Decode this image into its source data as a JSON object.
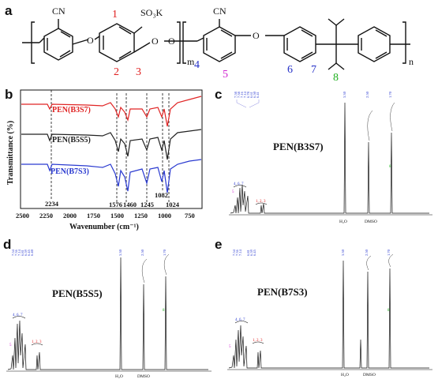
{
  "panels": {
    "a": {
      "label": "a",
      "cn1": "CN",
      "sulfonate": "SO₃K",
      "o_atoms": [
        "O",
        "O",
        "O",
        "O"
      ],
      "m": "m",
      "n": "n",
      "numbers": [
        {
          "text": "1",
          "color": "#e02020"
        },
        {
          "text": "2",
          "color": "#e02020"
        },
        {
          "text": "3",
          "color": "#e02020"
        },
        {
          "text": "4",
          "color": "#2530c8"
        },
        {
          "text": "5",
          "color": "#d020d0"
        },
        {
          "text": "6",
          "color": "#2530c8"
        },
        {
          "text": "7",
          "color": "#2530c8"
        },
        {
          "text": "8",
          "color": "#20b020"
        }
      ],
      "cn2": "CN"
    },
    "b": {
      "label": "b",
      "ylabel": "Transmittance (%)",
      "xlabel": "Wavenumber (cm⁻¹)",
      "xticks": [
        "2500",
        "2250",
        "2000",
        "1750",
        "1500",
        "1250",
        "1000",
        "750"
      ],
      "series": [
        {
          "name": "PEN(B3S7)",
          "color": "#e02424"
        },
        {
          "name": "PEN(B5S5)",
          "color": "#222222"
        },
        {
          "name": "PEN(B7S3)",
          "color": "#2a3ad0"
        }
      ],
      "peaks": [
        "2234",
        "1576",
        "1460",
        "1245",
        "1082",
        "1024"
      ]
    },
    "c": {
      "label": "c",
      "title": "PEN(B3S7)",
      "assign": [
        "4, 6, 7",
        "5",
        "1, 2, 3",
        "8"
      ],
      "solvents": [
        "H₂O",
        "DMSO"
      ],
      "shifts": [
        "7.58",
        "7.38",
        "7.16",
        "7.14",
        "6.78",
        "6.61",
        "6.50",
        "6.41",
        "3.30",
        "2.50",
        "1.70"
      ]
    },
    "d": {
      "label": "d",
      "title": "PEN(B5S5)",
      "assign": [
        "4, 6, 7",
        "5",
        "1, 2, 3",
        "8"
      ],
      "solvents": [
        "H₂O",
        "DMSO"
      ],
      "shifts": [
        "7.54",
        "7.36",
        "7.14",
        "6.81",
        "6.59",
        "6.45",
        "6.40",
        "3.30",
        "2.50",
        "1.70"
      ]
    },
    "e": {
      "label": "e",
      "title": "PEN(B7S3)",
      "assign": [
        "4, 6, 7",
        "5",
        "1, 2, 3",
        "8"
      ],
      "solvents": [
        "H₂O",
        "DMSO"
      ],
      "shifts": [
        "7.54",
        "7.36",
        "7.14",
        "6.81",
        "6.59",
        "6.45",
        "3.30",
        "2.50",
        "1.70"
      ]
    }
  }
}
